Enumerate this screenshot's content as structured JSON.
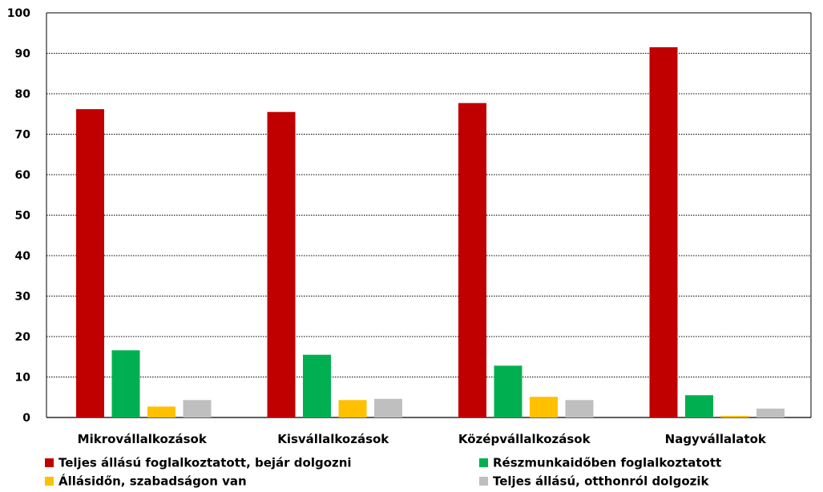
{
  "chart_data": {
    "type": "bar",
    "categories": [
      "Mikrovállalkozások",
      "Kisvállalkozások",
      "Középvállalkozások",
      "Nagyvállalatok"
    ],
    "series": [
      {
        "name": "Teljes állású foglalkoztatott, bejár dolgozni",
        "color": "#C00000",
        "values": [
          76.2,
          75.5,
          77.7,
          91.5
        ]
      },
      {
        "name": "Részmunkaidőben foglalkoztatott",
        "color": "#00B050",
        "values": [
          16.6,
          15.5,
          12.8,
          5.5
        ]
      },
      {
        "name": "Állásidőn, szabadságon van",
        "color": "#FFC000",
        "values": [
          2.7,
          4.3,
          5.1,
          0.4
        ]
      },
      {
        "name": "Teljes állású, otthonról dolgozik",
        "color": "#BFBFBF",
        "values": [
          4.3,
          4.6,
          4.3,
          2.2
        ]
      }
    ],
    "yticks": [
      "0",
      "10",
      "20",
      "30",
      "40",
      "50",
      "60",
      "70",
      "80",
      "90",
      "100"
    ],
    "ylim": [
      0,
      100
    ],
    "grid": true,
    "legend_position": "bottom"
  },
  "legend": [
    {
      "label": "Teljes állású foglalkoztatott, bejár dolgozni",
      "color": "#C00000"
    },
    {
      "label": "Részmunkaidőben foglalkoztatott",
      "color": "#00B050"
    },
    {
      "label": "Állásidőn, szabadságon van",
      "color": "#FFC000"
    },
    {
      "label": "Teljes állású, otthonról dolgozik",
      "color": "#BFBFBF"
    }
  ]
}
